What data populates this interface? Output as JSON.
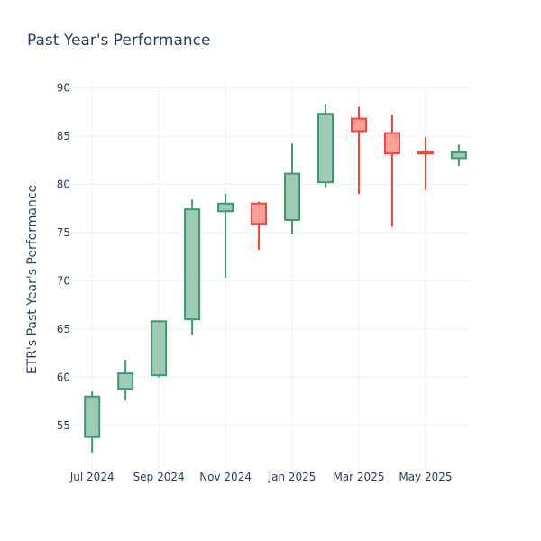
{
  "chart_data": {
    "type": "candlestick",
    "title": "Past Year's Performance",
    "xlabel": "",
    "ylabel": "ETR's Past Year's Performance",
    "ylim": [
      50.5,
      90.5
    ],
    "y_ticks": [
      55,
      60,
      65,
      70,
      75,
      80,
      85,
      90
    ],
    "x_ticks": [
      {
        "label": "Jul 2024",
        "pos": 0
      },
      {
        "label": "Sep 2024",
        "pos": 2
      },
      {
        "label": "Nov 2024",
        "pos": 4
      },
      {
        "label": "Jan 2025",
        "pos": 6
      },
      {
        "label": "Mar 2025",
        "pos": 8
      },
      {
        "label": "May 2025",
        "pos": 10
      }
    ],
    "x_range": [
      -0.6,
      11.3
    ],
    "grid": true,
    "increasing_color": "#3d9970",
    "increasing_fill": "#9ecbb6",
    "decreasing_color": "#ff4136",
    "decreasing_fill": "#ffa09b",
    "candles": [
      {
        "open": 53.8,
        "high": 58.5,
        "low": 52.2,
        "close": 58.0
      },
      {
        "open": 58.8,
        "high": 61.8,
        "low": 57.6,
        "close": 60.4
      },
      {
        "open": 60.2,
        "high": 65.9,
        "low": 60.0,
        "close": 65.8
      },
      {
        "open": 66.0,
        "high": 78.4,
        "low": 64.4,
        "close": 77.4
      },
      {
        "open": 77.2,
        "high": 79.0,
        "low": 70.3,
        "close": 78.0
      },
      {
        "open": 78.0,
        "high": 78.2,
        "low": 73.2,
        "close": 75.9
      },
      {
        "open": 76.3,
        "high": 84.2,
        "low": 74.8,
        "close": 81.1
      },
      {
        "open": 80.2,
        "high": 88.3,
        "low": 79.7,
        "close": 87.3
      },
      {
        "open": 86.8,
        "high": 88.0,
        "low": 79.0,
        "close": 85.5
      },
      {
        "open": 85.3,
        "high": 87.2,
        "low": 75.6,
        "close": 83.2
      },
      {
        "open": 83.3,
        "high": 84.9,
        "low": 79.4,
        "close": 83.2
      },
      {
        "open": 82.7,
        "high": 84.1,
        "low": 81.9,
        "close": 83.3
      }
    ]
  }
}
